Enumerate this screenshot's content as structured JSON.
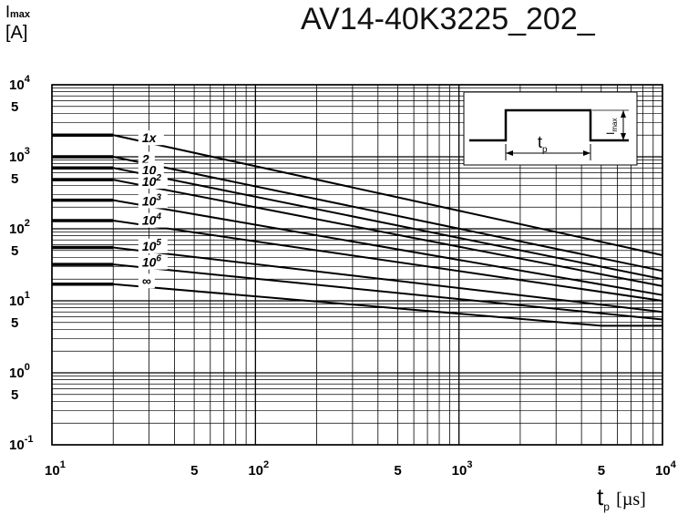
{
  "page": {
    "title": "AV14-40K3225_202_"
  },
  "chart_data": {
    "type": "line",
    "title": "",
    "xlabel": "t_p [µs]",
    "xlabel_parts": {
      "main": "t",
      "sub": "p",
      "unit": "[µs]"
    },
    "ylabel": "I_max [A]",
    "ylabel_parts": {
      "main": "I",
      "sub": "max",
      "unit": "[A]"
    },
    "xscale": "log",
    "yscale": "log",
    "xlim": [
      10,
      10000
    ],
    "ylim": [
      0.1,
      10000
    ],
    "grid": true,
    "x_ticks": [
      {
        "value": 10,
        "label": "10",
        "exp": "1"
      },
      {
        "value": 50,
        "label": "5",
        "exp": ""
      },
      {
        "value": 100,
        "label": "10",
        "exp": "2"
      },
      {
        "value": 500,
        "label": "5",
        "exp": ""
      },
      {
        "value": 1000,
        "label": "10",
        "exp": "3"
      },
      {
        "value": 5000,
        "label": "5",
        "exp": ""
      },
      {
        "value": 10000,
        "label": "10",
        "exp": "4"
      }
    ],
    "y_ticks": [
      {
        "value": 10000,
        "label": "10",
        "exp": "4"
      },
      {
        "value": 5000,
        "label": "5",
        "exp": ""
      },
      {
        "value": 1000,
        "label": "10",
        "exp": "3"
      },
      {
        "value": 500,
        "label": "5",
        "exp": ""
      },
      {
        "value": 100,
        "label": "10",
        "exp": "2"
      },
      {
        "value": 50,
        "label": "5",
        "exp": ""
      },
      {
        "value": 10,
        "label": "10",
        "exp": "1"
      },
      {
        "value": 5,
        "label": "5",
        "exp": ""
      },
      {
        "value": 1,
        "label": "10",
        "exp": "0"
      },
      {
        "value": 0.5,
        "label": "5",
        "exp": ""
      },
      {
        "value": 0.1,
        "label": "10",
        "exp": "-1"
      }
    ],
    "series": [
      {
        "name": "1x",
        "label": "1x",
        "label_exp": "",
        "plateau": 2000,
        "x": [
          20,
          10000
        ],
        "y": [
          2000,
          43
        ]
      },
      {
        "name": "2",
        "label": "2",
        "label_exp": "",
        "plateau": 1000,
        "x": [
          20,
          10000
        ],
        "y": [
          1000,
          26
        ]
      },
      {
        "name": "10",
        "label": "10",
        "label_exp": "",
        "plateau": 700,
        "x": [
          20,
          10000
        ],
        "y": [
          700,
          20
        ]
      },
      {
        "name": "10^2",
        "label": "10",
        "label_exp": "2",
        "plateau": 480,
        "x": [
          20,
          10000
        ],
        "y": [
          480,
          16
        ]
      },
      {
        "name": "10^3",
        "label": "10",
        "label_exp": "3",
        "plateau": 250,
        "x": [
          20,
          10000
        ],
        "y": [
          250,
          12
        ]
      },
      {
        "name": "10^4",
        "label": "10",
        "label_exp": "4",
        "plateau": 130,
        "x": [
          20,
          10000
        ],
        "y": [
          130,
          10
        ]
      },
      {
        "name": "10^5",
        "label": "10",
        "label_exp": "5",
        "plateau": 55,
        "x": [
          20,
          10000
        ],
        "y": [
          55,
          7
        ]
      },
      {
        "name": "10^6",
        "label": "10",
        "label_exp": "6",
        "plateau": 32,
        "x": [
          20,
          10000
        ],
        "y": [
          32,
          5.5
        ]
      },
      {
        "name": "∞",
        "label": "∞",
        "label_exp": "",
        "plateau": 17,
        "x": [
          20,
          5000,
          10000
        ],
        "y": [
          17,
          4.5,
          4.5
        ]
      }
    ],
    "inset": {
      "description": "pulse",
      "tp_label": "t",
      "tp_sub": "p",
      "imax_label": "I",
      "imax_sub": "max"
    }
  }
}
